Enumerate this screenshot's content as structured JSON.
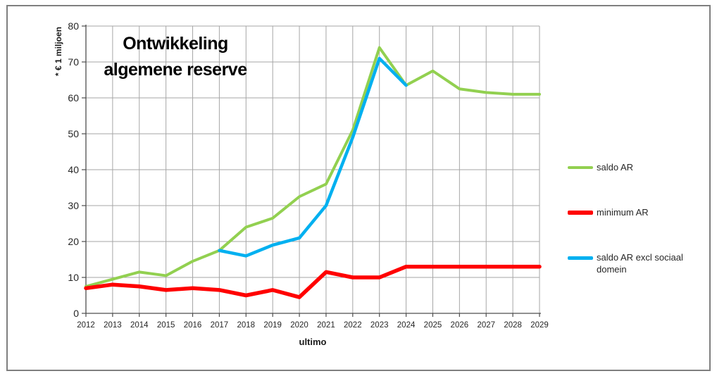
{
  "window": {
    "background": "#ffffff",
    "frame_border_color": "#7f7f7f"
  },
  "chart_data": {
    "type": "line",
    "title": "Ontwikkeling algemene reserve",
    "title_lines": [
      "Ontwikkeling",
      "algemene reserve"
    ],
    "ylabel": "* € 1 miljoen",
    "xlabel": "ultimo",
    "ylim": [
      0,
      80
    ],
    "yticks": [
      0,
      10,
      20,
      30,
      40,
      50,
      60,
      70,
      80
    ],
    "grid": true,
    "legend_position": "right",
    "categories": [
      "2012",
      "2013",
      "2014",
      "2015",
      "2016",
      "2017",
      "2018",
      "2019",
      "2020",
      "2021",
      "2022",
      "2023",
      "2024",
      "2025",
      "2026",
      "2027",
      "2028",
      "2029"
    ],
    "series": [
      {
        "name": "saldo AR",
        "color": "#92D050",
        "line_width": 4,
        "values": [
          7.5,
          9.5,
          11.5,
          10.5,
          14.5,
          17.5,
          24,
          26.5,
          32.5,
          36,
          51,
          74,
          63.5,
          67.5,
          62.5,
          61.5,
          61,
          61
        ]
      },
      {
        "name": "minimum AR",
        "color": "#FF0000",
        "line_width": 5.5,
        "values": [
          7,
          8,
          7.5,
          6.5,
          7,
          6.5,
          5,
          6.5,
          4.5,
          11.5,
          10,
          10,
          13,
          13,
          13,
          13,
          13,
          13
        ]
      },
      {
        "name": "saldo AR excl sociaal domein",
        "color": "#00B0F0",
        "line_width": 4.5,
        "values": [
          null,
          null,
          null,
          null,
          null,
          17.5,
          16,
          19,
          21,
          30,
          49,
          71,
          63.5,
          null,
          null,
          null,
          null,
          null
        ]
      }
    ],
    "colors": {
      "gridline": "#a6a6a6",
      "axis": "#4d4d4d",
      "tick_label": "#262626"
    }
  }
}
